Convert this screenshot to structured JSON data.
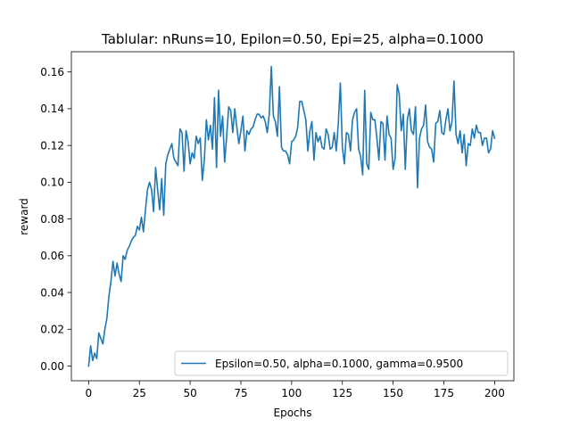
{
  "chart_data": {
    "type": "line",
    "title": "Tablular: nRuns=10, Epilon=0.50, Epi=25, alpha=0.1000",
    "xlabel": "Epochs",
    "ylabel": "reward",
    "xlim": [
      -8.5,
      209.5
    ],
    "ylim": [
      -0.008,
      0.171
    ],
    "xticks": [
      0,
      25,
      50,
      75,
      100,
      125,
      150,
      175,
      200
    ],
    "xtick_labels": [
      "0",
      "25",
      "50",
      "75",
      "100",
      "125",
      "150",
      "175",
      "200"
    ],
    "yticks": [
      0.0,
      0.02,
      0.04,
      0.06,
      0.08,
      0.1,
      0.12,
      0.14,
      0.16
    ],
    "ytick_labels": [
      "0.00",
      "0.02",
      "0.04",
      "0.06",
      "0.08",
      "0.10",
      "0.12",
      "0.14",
      "0.16"
    ],
    "grid": false,
    "legend_position": "lower-right",
    "series": [
      {
        "name": "Epsilon=0.50, alpha=0.1000, gamma=0.9500",
        "color": "#1f77b4",
        "x_start": 0,
        "x_step": 1,
        "values": [
          0.0,
          0.011,
          0.003,
          0.007,
          0.004,
          0.018,
          0.015,
          0.012,
          0.02,
          0.026,
          0.038,
          0.046,
          0.057,
          0.049,
          0.056,
          0.05,
          0.046,
          0.06,
          0.058,
          0.063,
          0.065,
          0.068,
          0.07,
          0.071,
          0.076,
          0.074,
          0.081,
          0.073,
          0.085,
          0.096,
          0.1,
          0.096,
          0.084,
          0.108,
          0.096,
          0.085,
          0.102,
          0.082,
          0.11,
          0.115,
          0.118,
          0.121,
          0.113,
          0.111,
          0.109,
          0.129,
          0.127,
          0.106,
          0.128,
          0.122,
          0.11,
          0.116,
          0.113,
          0.125,
          0.121,
          0.124,
          0.101,
          0.112,
          0.134,
          0.123,
          0.131,
          0.118,
          0.146,
          0.108,
          0.15,
          0.125,
          0.136,
          0.111,
          0.125,
          0.141,
          0.139,
          0.127,
          0.14,
          0.13,
          0.121,
          0.128,
          0.136,
          0.117,
          0.128,
          0.126,
          0.129,
          0.13,
          0.134,
          0.137,
          0.137,
          0.135,
          0.136,
          0.133,
          0.127,
          0.137,
          0.163,
          0.136,
          0.133,
          0.125,
          0.152,
          0.119,
          0.117,
          0.117,
          0.115,
          0.11,
          0.122,
          0.123,
          0.125,
          0.13,
          0.144,
          0.144,
          0.139,
          0.134,
          0.117,
          0.128,
          0.133,
          0.112,
          0.127,
          0.122,
          0.125,
          0.119,
          0.118,
          0.129,
          0.126,
          0.118,
          0.119,
          0.127,
          0.117,
          0.132,
          0.154,
          0.119,
          0.11,
          0.127,
          0.126,
          0.117,
          0.134,
          0.138,
          0.14,
          0.118,
          0.114,
          0.104,
          0.15,
          0.11,
          0.107,
          0.138,
          0.134,
          0.134,
          0.124,
          0.112,
          0.133,
          0.132,
          0.112,
          0.136,
          0.126,
          0.124,
          0.107,
          0.113,
          0.153,
          0.148,
          0.128,
          0.137,
          0.107,
          0.134,
          0.14,
          0.128,
          0.126,
          0.141,
          0.097,
          0.124,
          0.129,
          0.131,
          0.142,
          0.122,
          0.119,
          0.118,
          0.111,
          0.132,
          0.133,
          0.139,
          0.127,
          0.126,
          0.134,
          0.14,
          0.128,
          0.133,
          0.155,
          0.126,
          0.121,
          0.128,
          0.116,
          0.126,
          0.109,
          0.121,
          0.12,
          0.129,
          0.124,
          0.131,
          0.127,
          0.127,
          0.12,
          0.124,
          0.124,
          0.116,
          0.118,
          0.128,
          0.124
        ]
      }
    ]
  }
}
